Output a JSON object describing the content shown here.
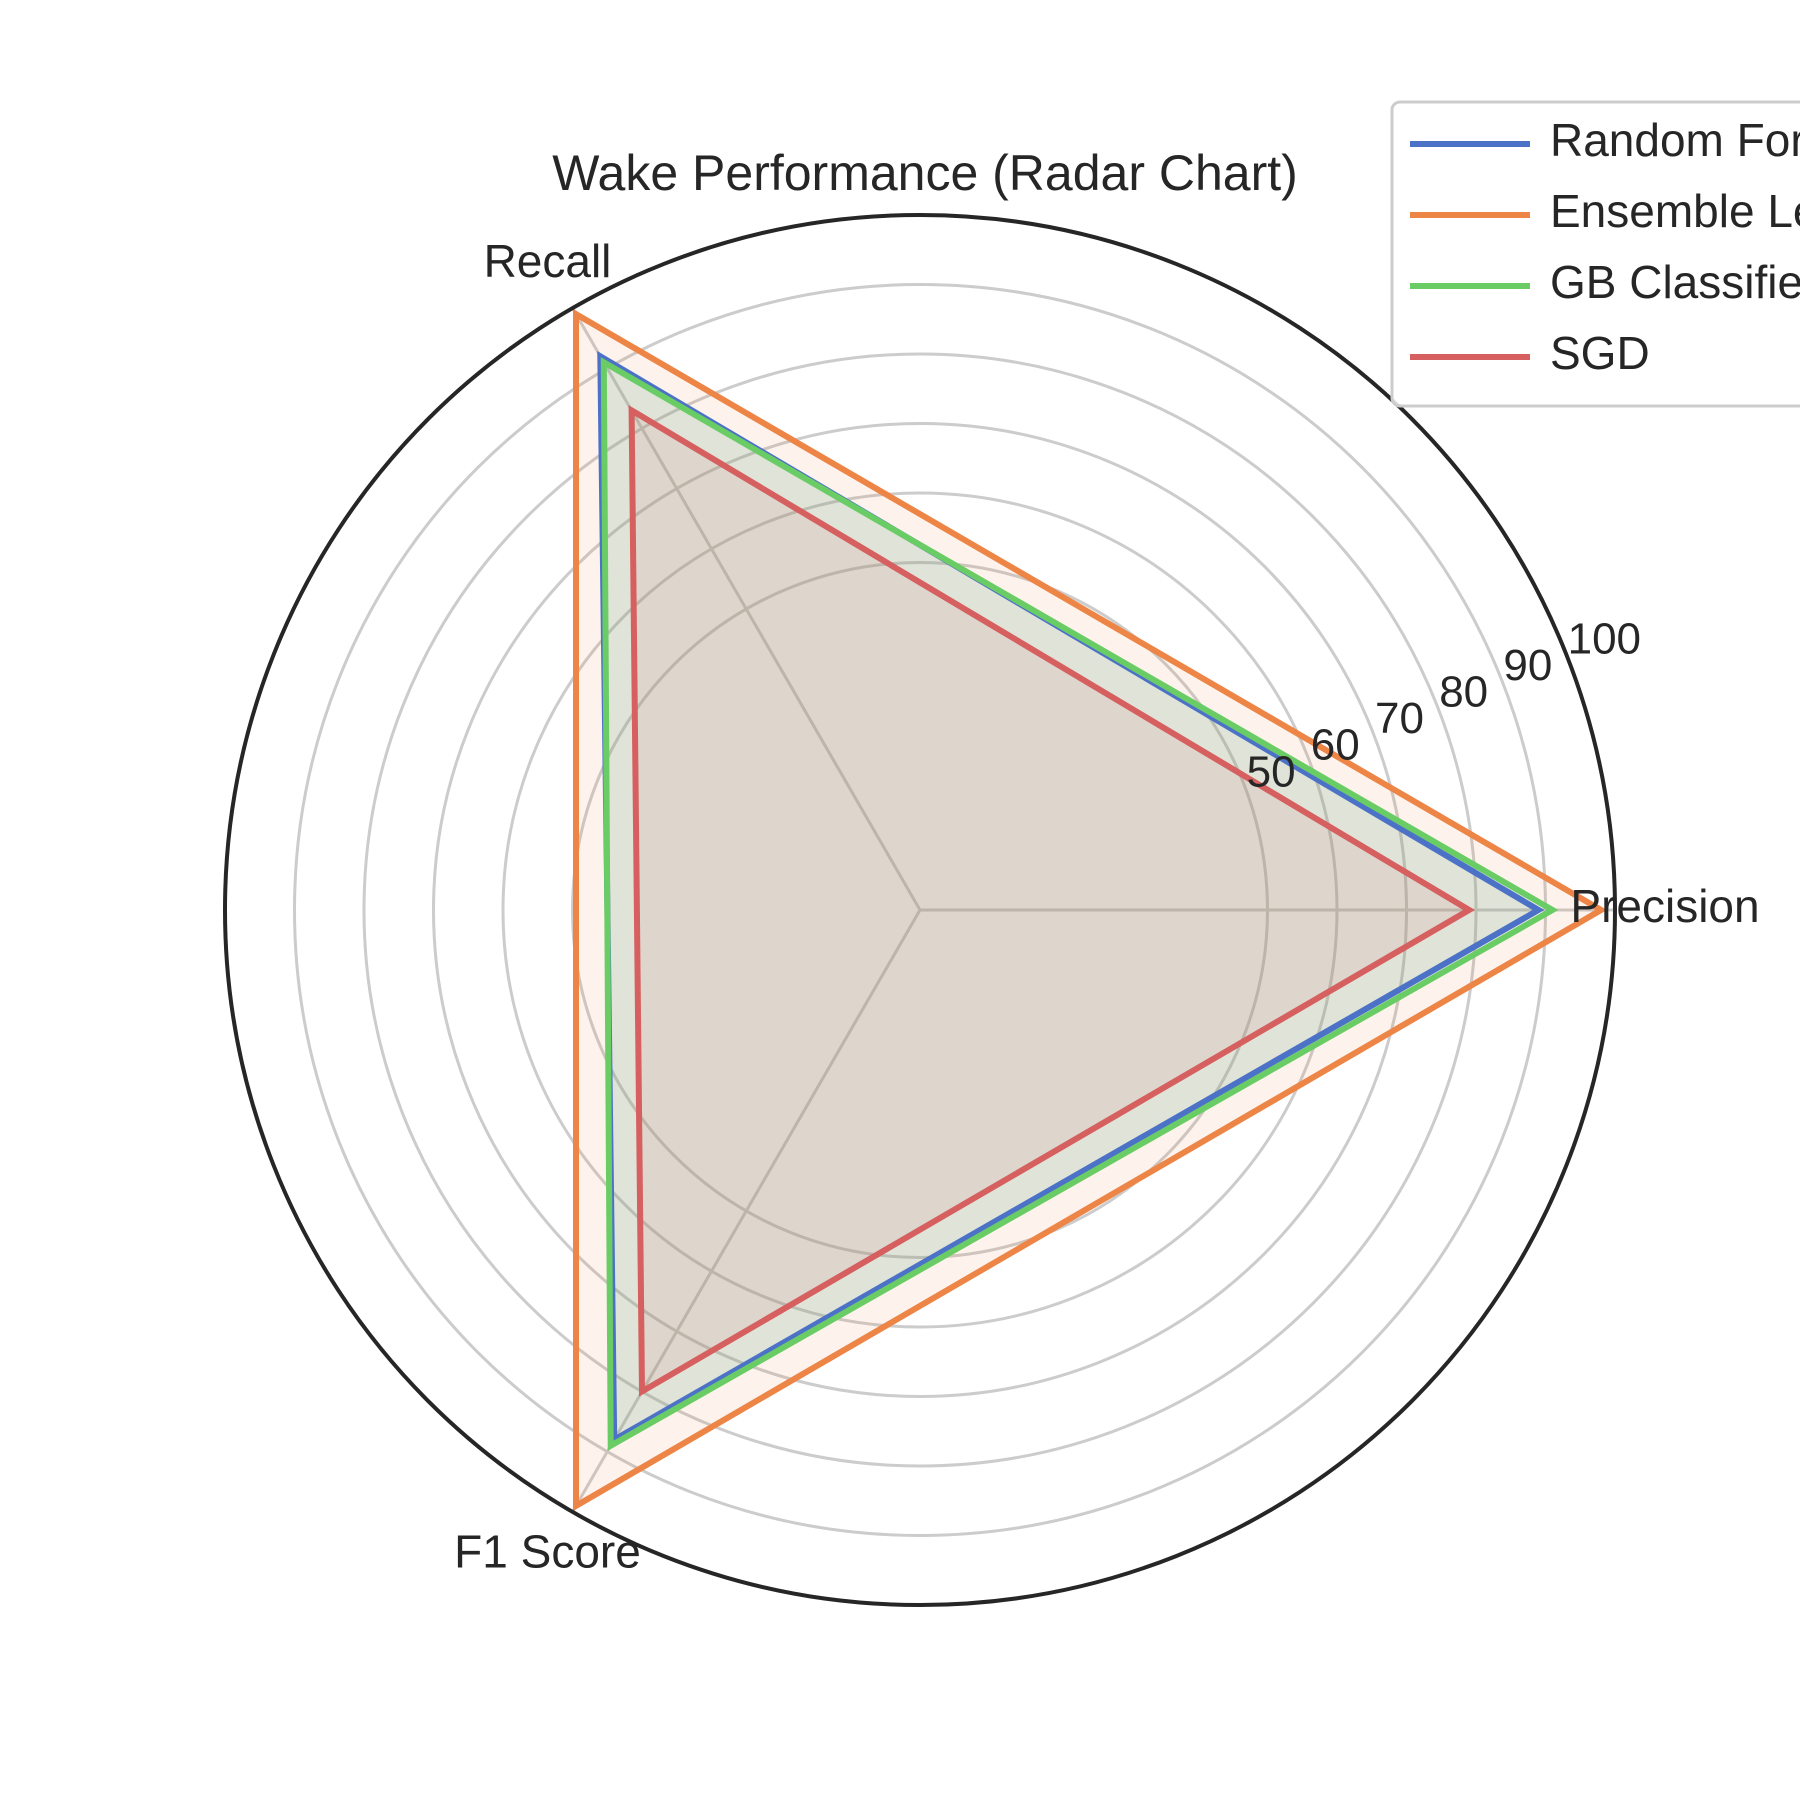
{
  "chart_data": {
    "type": "radar",
    "title": "Wake Performance (Radar Chart)",
    "axes": [
      "Precision",
      "Recall",
      "F1 Score"
    ],
    "rlim": [
      0,
      100
    ],
    "r_ticks": [
      50,
      60,
      70,
      80,
      90,
      100
    ],
    "r_tick_labels": [
      "50",
      "60",
      "70",
      "80",
      "90",
      "100"
    ],
    "grid": true,
    "legend_position": "top-right",
    "series": [
      {
        "name": "Random Forest",
        "values": [
          89,
          92,
          88
        ],
        "color": "#4C72C8"
      },
      {
        "name": "Ensemble Learning",
        "values": [
          98,
          99,
          99
        ],
        "color": "#ED8547"
      },
      {
        "name": "GB Classifier",
        "values": [
          91,
          91,
          89
        ],
        "color": "#6ACC64"
      },
      {
        "name": "SGD",
        "values": [
          79,
          83,
          80
        ],
        "color": "#D65F5F"
      }
    ]
  }
}
